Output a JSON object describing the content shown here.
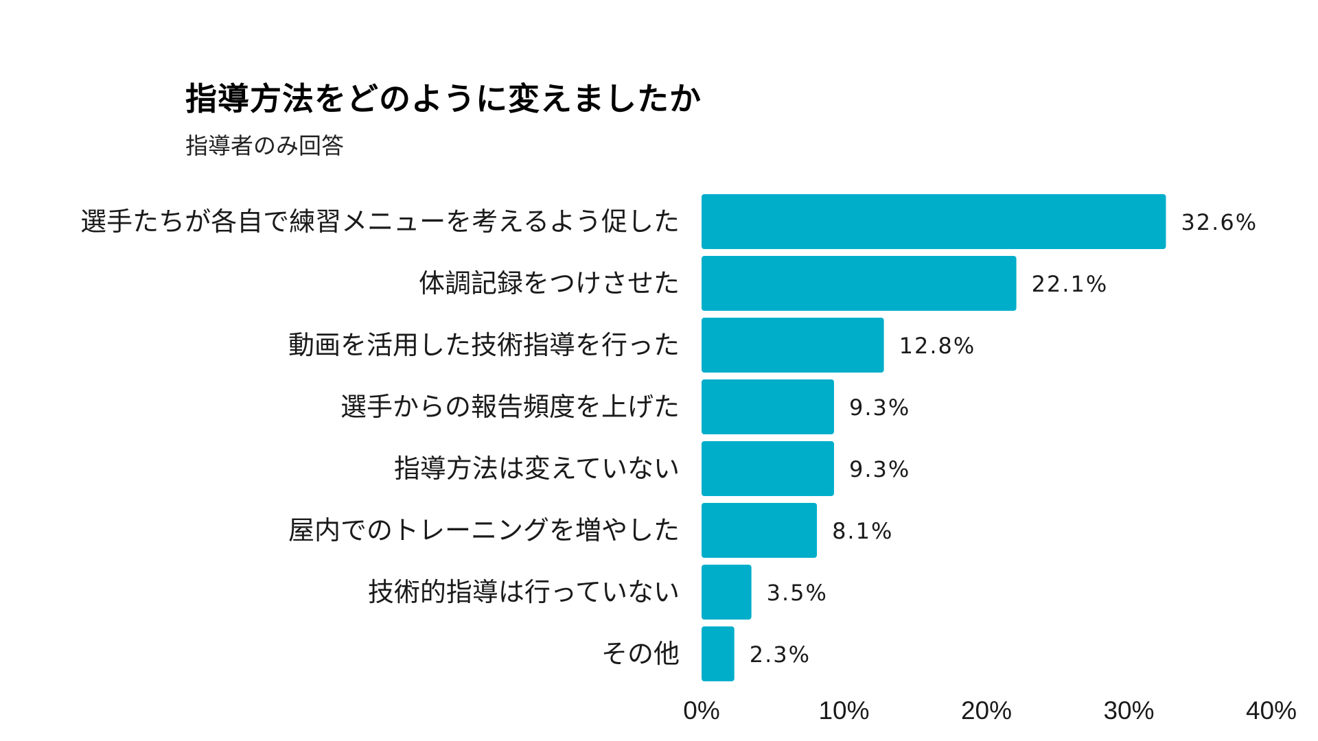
{
  "chart_data": {
    "type": "bar",
    "orientation": "horizontal",
    "title": "指導方法をどのように変えましたか",
    "subtitle": "指導者のみ回答",
    "categories": [
      "選手たちが各自で練習メニューを考えるよう促した",
      "体調記録をつけさせた",
      "動画を活用した技術指導を行った",
      "選手からの報告頻度を上げた",
      "指導方法は変えていない",
      "屋内でのトレーニングを増やした",
      "技術的指導は行っていない",
      "その他"
    ],
    "values": [
      32.6,
      22.1,
      12.8,
      9.3,
      9.3,
      8.1,
      3.5,
      2.3
    ],
    "value_labels": [
      "32.6%",
      "22.1%",
      "12.8%",
      "9.3%",
      "9.3%",
      "8.1%",
      "3.5%",
      "2.3%"
    ],
    "xlim": [
      0,
      40
    ],
    "xticks": [
      0,
      10,
      20,
      30,
      40
    ],
    "xtick_labels": [
      "0%",
      "10%",
      "20%",
      "30%",
      "40%"
    ],
    "xlabel": "",
    "ylabel": "",
    "grid": false,
    "legend": "none",
    "bar_color": "#00AECA"
  }
}
